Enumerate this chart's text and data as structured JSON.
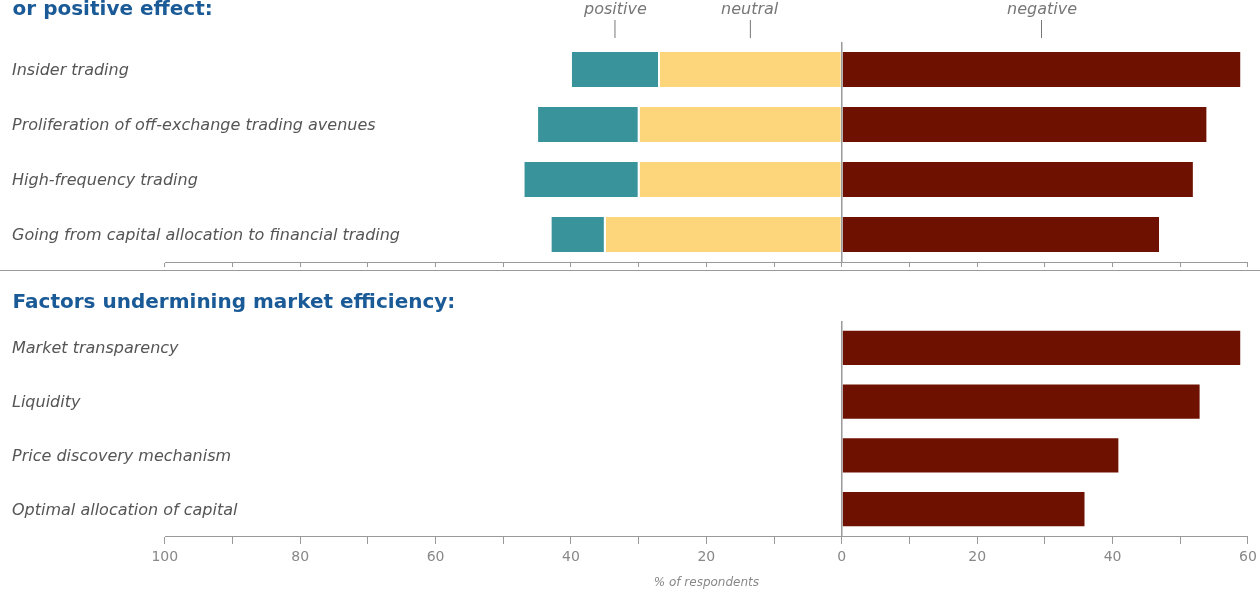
{
  "chart_data": [
    {
      "type": "bar",
      "title": "or positive effect:",
      "orientation": "horizontal",
      "stacked": true,
      "legend": "top",
      "grid": false,
      "tick_labels": "y",
      "categories": [
        "Insider trading",
        "Proliferation of off-exchange trading avenues",
        "High-frequency trading",
        "Going from capital allocation to financial trading"
      ],
      "series": [
        {
          "name": "neutral",
          "color": "#fdd67c",
          "values": [
            -27,
            -30,
            -30,
            -35
          ]
        },
        {
          "name": "positive",
          "color": "#38939b",
          "values": [
            -13,
            -15,
            -17,
            -8
          ]
        },
        {
          "name": "negative",
          "color": "#6e1100",
          "values": [
            59,
            54,
            52,
            47
          ]
        }
      ],
      "xlim": [
        -100,
        60
      ],
      "xticks": [
        {
          "value": -100,
          "label": null
        },
        {
          "value": -90,
          "label": null
        },
        {
          "value": -80,
          "label": null
        },
        {
          "value": -70,
          "label": null
        },
        {
          "value": -60,
          "label": null
        },
        {
          "value": -50,
          "label": null
        },
        {
          "value": -40,
          "label": null
        },
        {
          "value": -30,
          "label": null
        },
        {
          "value": -20,
          "label": null
        },
        {
          "value": -10,
          "label": null
        },
        {
          "value": 0,
          "label": null
        },
        {
          "value": 10,
          "label": null
        },
        {
          "value": 20,
          "label": null
        },
        {
          "value": 30,
          "label": null
        },
        {
          "value": 40,
          "label": null
        },
        {
          "value": 50,
          "label": null
        },
        {
          "value": 60,
          "label": null
        }
      ],
      "ref_lines": [
        {
          "axis": "x",
          "value": 0,
          "color": "#999999"
        }
      ]
    },
    {
      "type": "bar",
      "title": "Factors undermining market efficiency:",
      "orientation": "horizontal",
      "grid": false,
      "xlabel": "% of respondents",
      "categories": [
        "Market transparency",
        "Liquidity",
        "Price discovery mechanism",
        "Optimal allocation of capital"
      ],
      "series": [
        {
          "color": "#6e1100",
          "values": [
            59,
            53,
            41,
            36
          ]
        }
      ],
      "ref_lines": [
        {
          "axis": "x",
          "value": 0,
          "color": "#999999"
        }
      ],
      "xlim": [
        -100,
        60
      ],
      "xticks": [
        {
          "value": -100,
          "label": "100"
        },
        {
          "value": -90,
          "label": null
        },
        {
          "value": -80,
          "label": "80"
        },
        {
          "value": -70,
          "label": null
        },
        {
          "value": -60,
          "label": "60"
        },
        {
          "value": -50,
          "label": null
        },
        {
          "value": -40,
          "label": "40"
        },
        {
          "value": -30,
          "label": null
        },
        {
          "value": -20,
          "label": "20"
        },
        {
          "value": -10,
          "label": null
        },
        0,
        {
          "value": 10,
          "label": null
        },
        20,
        {
          "value": 30,
          "label": null
        },
        40,
        {
          "value": 50,
          "label": null
        },
        60
      ]
    }
  ]
}
